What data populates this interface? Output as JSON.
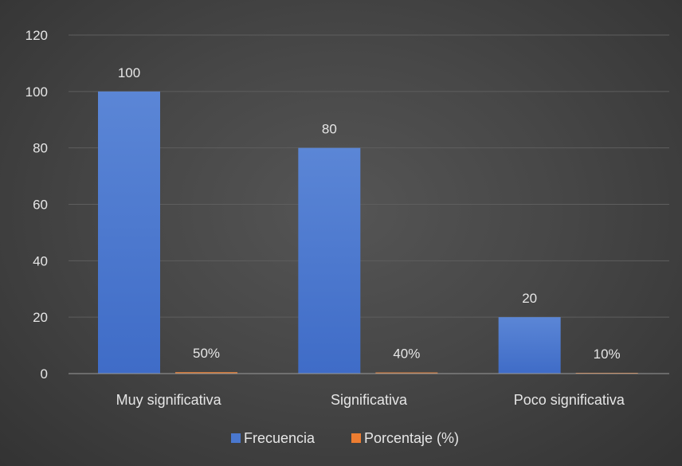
{
  "chart_data": {
    "type": "bar",
    "categories": [
      "Muy significativa",
      "Significativa",
      "Poco significativa"
    ],
    "series": [
      {
        "name": "Frecuencia",
        "values": [
          100,
          80,
          20
        ],
        "labels": [
          "100",
          "80",
          "20"
        ],
        "color": "#4a78cf"
      },
      {
        "name": "Porcentaje (%)",
        "values": [
          0.5,
          0.4,
          0.1
        ],
        "labels": [
          "50%",
          "40%",
          "10%"
        ],
        "color": "#ed7d31"
      }
    ],
    "ylim": [
      0,
      120
    ],
    "yticks": [
      "0",
      "20",
      "40",
      "60",
      "80",
      "100",
      "120"
    ],
    "grid": true,
    "legend_position": "bottom",
    "background": "#404040",
    "text_color": "#e6e6e6"
  }
}
